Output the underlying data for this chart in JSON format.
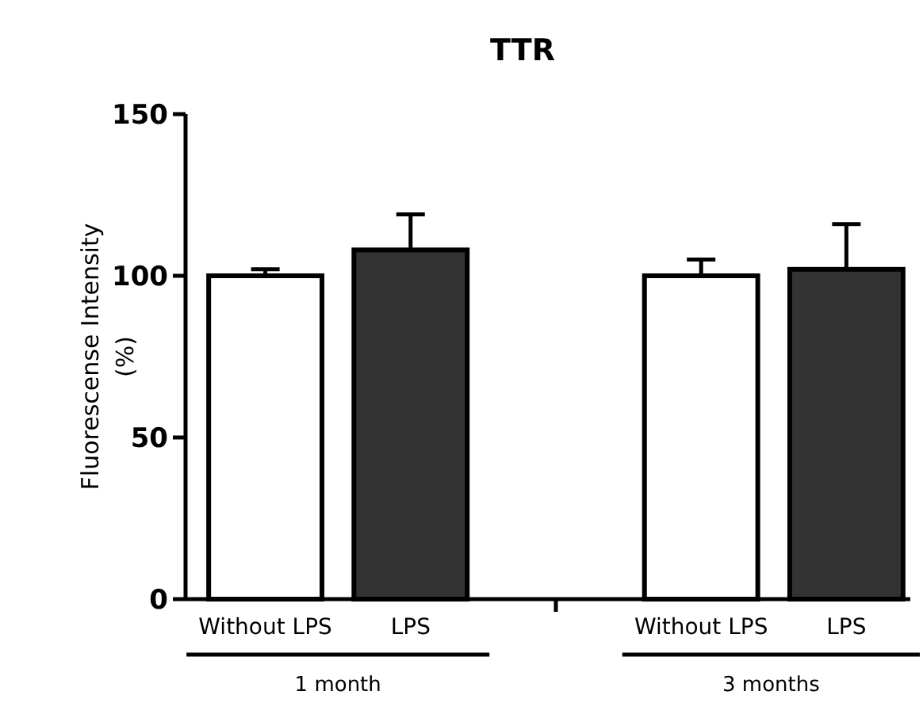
{
  "chart_data": {
    "type": "bar",
    "title": "TTR",
    "ylabel": "Fluorescense Intensity\n(%)",
    "categories": [
      "Without LPS",
      "LPS",
      null,
      "Without LPS",
      "LPS"
    ],
    "values": [
      100,
      108,
      null,
      100,
      102
    ],
    "colors": [
      "#ffffff",
      "#333333",
      null,
      "#ffffff",
      "#333333"
    ],
    "errors": [
      2,
      11,
      null,
      5,
      14
    ],
    "ylim": [
      0,
      150
    ],
    "yticks": [
      0,
      50,
      100,
      150
    ],
    "annotations": [
      "1 month",
      "3 months"
    ]
  }
}
